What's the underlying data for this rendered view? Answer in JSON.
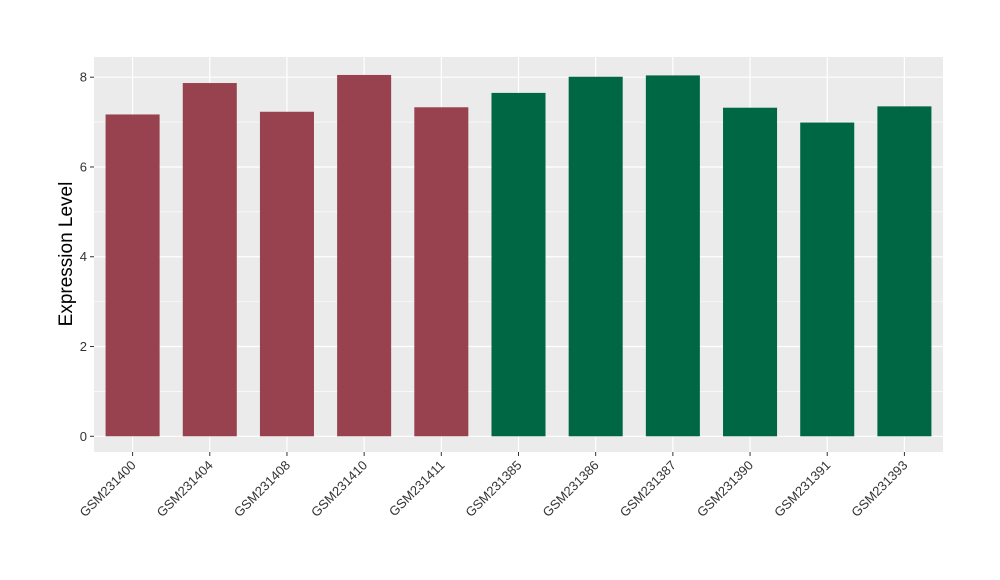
{
  "chart_data": {
    "type": "bar",
    "title": "",
    "xlabel": "",
    "ylabel": "Expression Level",
    "ylim": [
      -0.35,
      8.45
    ],
    "yticks": [
      0,
      2,
      4,
      6,
      8
    ],
    "grid": true,
    "categories": [
      "GSM231400",
      "GSM231404",
      "GSM231408",
      "GSM231410",
      "GSM231411",
      "GSM231385",
      "GSM231386",
      "GSM231387",
      "GSM231390",
      "GSM231391",
      "GSM231393"
    ],
    "values": [
      7.17,
      7.87,
      7.23,
      8.05,
      7.33,
      7.65,
      8.01,
      8.04,
      7.32,
      6.99,
      7.35
    ],
    "bar_colors": [
      "#98424f",
      "#98424f",
      "#98424f",
      "#98424f",
      "#98424f",
      "#006744",
      "#006744",
      "#006744",
      "#006744",
      "#006744",
      "#006744"
    ],
    "panel_background": "#ebebeb",
    "grid_color": "#ffffff"
  }
}
